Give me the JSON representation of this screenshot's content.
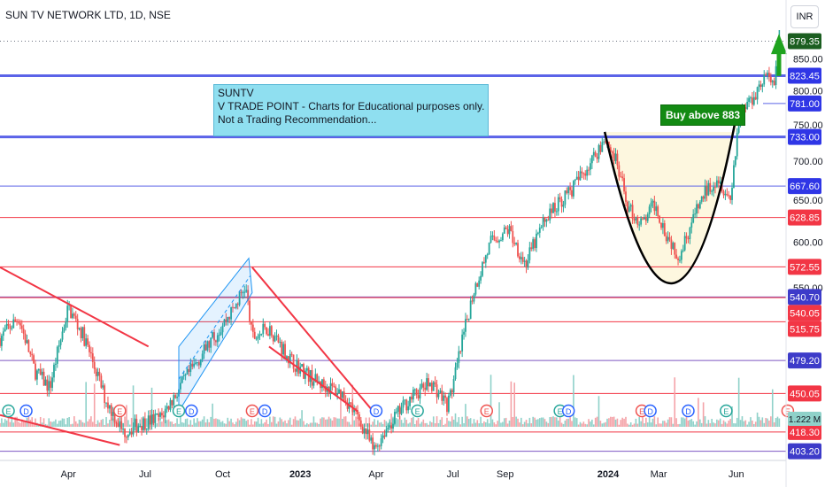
{
  "header": {
    "title": "SUN TV NETWORK LTD, 1D, NSE",
    "currency": "INR"
  },
  "annotations": {
    "note_lines": [
      "SUNTV",
      "V TRADE POINT - Charts for Educational purposes only.",
      "Not a Trading Recommendation..."
    ],
    "buy_label": "Buy above 883"
  },
  "colors": {
    "up_candle": "#26a69a",
    "down_candle": "#ef5350",
    "blue_level": "#5b63e8",
    "red_level": "#f23645",
    "purple_level": "#7e57c2",
    "trendline": "#f23645",
    "channel": "#2196f3",
    "arrow": "#1fa31f",
    "cup": "#000000",
    "current_price": "#1b5e20"
  },
  "chart_data": {
    "type": "candlestick",
    "title": "SUN TV NETWORK LTD, 1D, NSE",
    "ylim": [
      378,
      898
    ],
    "y_scale": "log",
    "y_ticks": [
      850,
      800,
      750,
      700,
      650,
      600,
      550
    ],
    "x_ticks": [
      "Apr",
      "Jul",
      "Oct",
      "2023",
      "Apr",
      "Jul",
      "Sep",
      "2024",
      "Mar",
      "Jun"
    ],
    "x_tick_dates": [
      "2022-04-01",
      "2022-07-01",
      "2022-10-01",
      "2023-01-01",
      "2023-04-01",
      "2023-07-01",
      "2023-09-01",
      "2024-01-01",
      "2024-03-01",
      "2024-06-01"
    ],
    "x_range": [
      "2022-01-10",
      "2024-07-30"
    ],
    "last_price": 879.35,
    "volume_readout": "1.222 M",
    "horizontal_levels": [
      {
        "price": 823.45,
        "label": "823.45",
        "color": "blue",
        "thick": true
      },
      {
        "price": 781.0,
        "label": "781.00",
        "color": "blue",
        "thick": false
      },
      {
        "price": 733.0,
        "label": "733.00",
        "color": "blue",
        "thick": true
      },
      {
        "price": 667.6,
        "label": "667.60",
        "color": "blue",
        "thick": false
      },
      {
        "price": 628.85,
        "label": "628.85",
        "color": "red",
        "thick": false
      },
      {
        "price": 572.55,
        "label": "572.55",
        "color": "red",
        "thick": false
      },
      {
        "price": 540.7,
        "label": "540.70",
        "color": "purple",
        "thick": false
      },
      {
        "price": 540.05,
        "label": "540.05",
        "color": "red",
        "thick": false
      },
      {
        "price": 515.75,
        "label": "515.75",
        "color": "red",
        "thick": false
      },
      {
        "price": 479.2,
        "label": "479.20",
        "color": "purple",
        "thick": false
      },
      {
        "price": 450.05,
        "label": "450.05",
        "color": "red",
        "thick": false
      },
      {
        "price": 418.3,
        "label": "418.30",
        "color": "red",
        "thick": false
      },
      {
        "price": 403.2,
        "label": "403.20",
        "color": "purple",
        "thick": false
      }
    ],
    "price_path": [
      [
        "2022-01-10",
        500
      ],
      [
        "2022-02-01",
        520
      ],
      [
        "2022-02-20",
        470
      ],
      [
        "2022-03-10",
        455
      ],
      [
        "2022-04-01",
        530
      ],
      [
        "2022-04-20",
        500
      ],
      [
        "2022-05-15",
        445
      ],
      [
        "2022-06-05",
        418
      ],
      [
        "2022-06-25",
        425
      ],
      [
        "2022-07-20",
        430
      ],
      [
        "2022-08-20",
        465
      ],
      [
        "2022-09-20",
        500
      ],
      [
        "2022-10-15",
        530
      ],
      [
        "2022-10-28",
        552
      ],
      [
        "2022-11-05",
        500
      ],
      [
        "2022-11-25",
        510
      ],
      [
        "2022-12-20",
        480
      ],
      [
        "2023-01-20",
        460
      ],
      [
        "2023-02-20",
        450
      ],
      [
        "2023-03-20",
        418
      ],
      [
        "2023-03-29",
        403
      ],
      [
        "2023-04-10",
        418
      ],
      [
        "2023-05-10",
        445
      ],
      [
        "2023-06-05",
        460
      ],
      [
        "2023-06-25",
        440
      ],
      [
        "2023-07-05",
        470
      ],
      [
        "2023-07-25",
        545
      ],
      [
        "2023-08-15",
        600
      ],
      [
        "2023-09-05",
        615
      ],
      [
        "2023-09-25",
        575
      ],
      [
        "2023-10-20",
        630
      ],
      [
        "2023-11-20",
        665
      ],
      [
        "2023-12-15",
        705
      ],
      [
        "2023-12-28",
        733
      ],
      [
        "2024-01-10",
        700
      ],
      [
        "2024-01-25",
        640
      ],
      [
        "2024-02-10",
        620
      ],
      [
        "2024-02-25",
        645
      ],
      [
        "2024-03-10",
        610
      ],
      [
        "2024-03-25",
        585
      ],
      [
        "2024-04-10",
        625
      ],
      [
        "2024-04-25",
        660
      ],
      [
        "2024-05-10",
        680
      ],
      [
        "2024-05-25",
        650
      ],
      [
        "2024-06-05",
        770
      ],
      [
        "2024-06-20",
        790
      ],
      [
        "2024-07-05",
        823
      ],
      [
        "2024-07-15",
        810
      ],
      [
        "2024-07-22",
        879
      ]
    ],
    "trendlines": [
      {
        "name": "falling-wedge-2022-upper",
        "start": [
          "2022-01-10",
          572
        ],
        "end": [
          "2022-07-05",
          492
        ]
      },
      {
        "name": "falling-wedge-2022-lower",
        "start": [
          "2022-01-10",
          432
        ],
        "end": [
          "2022-06-01",
          408
        ]
      },
      {
        "name": "falling-wedge-2023-upper",
        "start": [
          "2022-11-05",
          572
        ],
        "end": [
          "2023-04-01",
          432
        ]
      },
      {
        "name": "falling-wedge-2023-lower",
        "start": [
          "2022-11-25",
          492
        ],
        "end": [
          "2023-03-10",
          435
        ]
      }
    ],
    "channel": {
      "upper_start": [
        "2022-08-10",
        492
      ],
      "upper_end": [
        "2022-11-01",
        582
      ],
      "lower_start": [
        "2022-08-10",
        435
      ],
      "lower_end": [
        "2022-11-05",
        545
      ]
    },
    "cup": {
      "start": [
        "2023-12-28",
        740
      ],
      "bottom": [
        "2024-03-20",
        555
      ],
      "end": [
        "2024-06-01",
        763
      ]
    },
    "event_markers": {
      "E": [
        "2022-01-20",
        "2022-06-01",
        "2022-08-10",
        "2022-11-05",
        "2023-05-20",
        "2023-08-10",
        "2023-11-05",
        "2024-02-10",
        "2024-05-20",
        "2024-08-01"
      ],
      "D": [
        "2022-02-10",
        "2022-08-25",
        "2022-11-20",
        "2023-04-01",
        "2023-11-15",
        "2024-02-20",
        "2024-04-05"
      ]
    }
  }
}
